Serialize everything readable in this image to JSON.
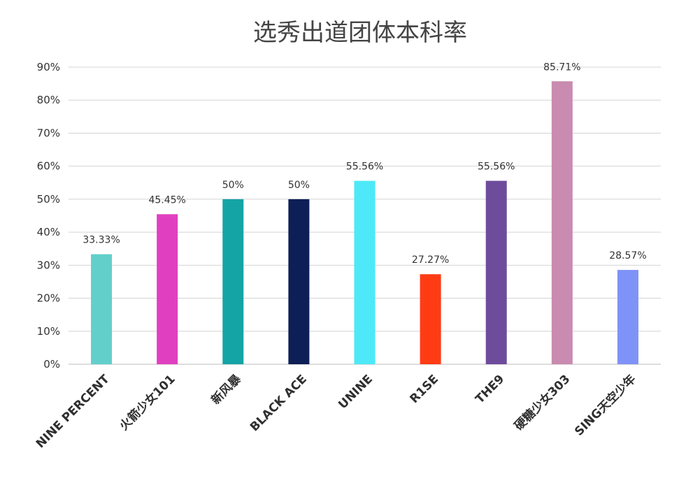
{
  "chart_data": {
    "type": "bar",
    "title": "选秀出道团体本科率",
    "xlabel": "",
    "ylabel": "",
    "ylim": [
      0,
      90
    ],
    "yticks": [
      "0%",
      "10%",
      "20%",
      "30%",
      "40%",
      "50%",
      "60%",
      "70%",
      "80%",
      "90%"
    ],
    "grid": true,
    "legend": "none",
    "categories": [
      "NINE PERCENT",
      "火箭少女101",
      "新风暴",
      "BLACK ACE",
      "UNINE",
      "R1SE",
      "THE9",
      "硬糖少女303",
      "SING天空少年"
    ],
    "values": [
      33.33,
      45.45,
      50,
      50,
      55.56,
      27.27,
      55.56,
      85.71,
      28.57
    ],
    "data_labels": [
      "33.33%",
      "45.45%",
      "50%",
      "50%",
      "55.56%",
      "27.27%",
      "55.56%",
      "85.71%",
      "28.57%"
    ],
    "colors": [
      "#62CFCB",
      "#E040C0",
      "#15A4A6",
      "#0E1F57",
      "#4DE9F8",
      "#FF3B14",
      "#6E4C9C",
      "#C98BB0",
      "#7F92F7"
    ]
  }
}
